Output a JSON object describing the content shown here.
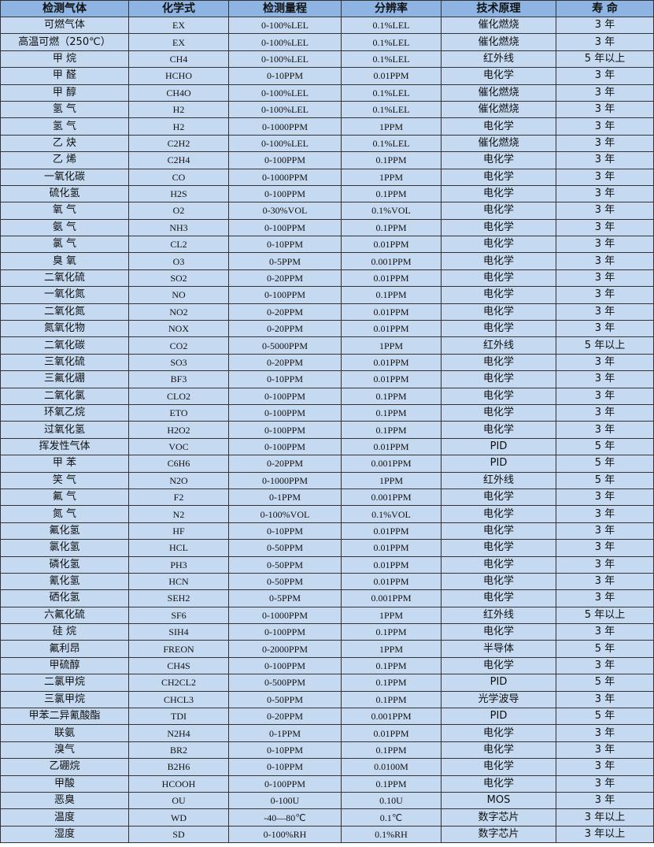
{
  "table": {
    "headers": [
      "检测气体",
      "化学式",
      "检测量程",
      "分辨率",
      "技术原理",
      "寿 命"
    ],
    "rows": [
      [
        "可燃气体",
        "EX",
        "0-100%LEL",
        "0.1%LEL",
        "催化燃烧",
        "3 年"
      ],
      [
        "高温可燃（250℃）",
        "EX",
        "0-100%LEL",
        "0.1%LEL",
        "催化燃烧",
        "3 年"
      ],
      [
        "甲 烷",
        "CH4",
        "0-100%LEL",
        "0.1%LEL",
        "红外线",
        "5 年以上"
      ],
      [
        "甲 醛",
        "HCHO",
        "0-10PPM",
        "0.01PPM",
        "电化学",
        "3 年"
      ],
      [
        "甲 醇",
        "CH4O",
        "0-100%LEL",
        "0.1%LEL",
        "催化燃烧",
        "3 年"
      ],
      [
        "氢 气",
        "H2",
        "0-100%LEL",
        "0.1%LEL",
        "催化燃烧",
        "3 年"
      ],
      [
        "氢 气",
        "H2",
        "0-1000PPM",
        "1PPM",
        "电化学",
        "3 年"
      ],
      [
        "乙 炔",
        "C2H2",
        "0-100%LEL",
        "0.1%LEL",
        "催化燃烧",
        "3 年"
      ],
      [
        "乙 烯",
        "C2H4",
        "0-100PPM",
        "0.1PPM",
        "电化学",
        "3 年"
      ],
      [
        "一氧化碳",
        "CO",
        "0-1000PPM",
        "1PPM",
        "电化学",
        "3 年"
      ],
      [
        "硫化氢",
        "H2S",
        "0-100PPM",
        "0.1PPM",
        "电化学",
        "3 年"
      ],
      [
        "氧 气",
        "O2",
        "0-30%VOL",
        "0.1%VOL",
        "电化学",
        "3 年"
      ],
      [
        "氨 气",
        "NH3",
        "0-100PPM",
        "0.1PPM",
        "电化学",
        "3 年"
      ],
      [
        "氯 气",
        "CL2",
        "0-10PPM",
        "0.01PPM",
        "电化学",
        "3 年"
      ],
      [
        "臭 氧",
        "O3",
        "0-5PPM",
        "0.001PPM",
        "电化学",
        "3 年"
      ],
      [
        "二氧化硫",
        "SO2",
        "0-20PPM",
        "0.01PPM",
        "电化学",
        "3 年"
      ],
      [
        "一氧化氮",
        "NO",
        "0-100PPM",
        "0.1PPM",
        "电化学",
        "3 年"
      ],
      [
        "二氧化氮",
        "NO2",
        "0-20PPM",
        "0.01PPM",
        "电化学",
        "3 年"
      ],
      [
        "氮氧化物",
        "NOX",
        "0-20PPM",
        "0.01PPM",
        "电化学",
        "3 年"
      ],
      [
        "二氧化碳",
        "CO2",
        "0-5000PPM",
        "1PPM",
        "红外线",
        "5 年以上"
      ],
      [
        "三氧化硫",
        "SO3",
        "0-20PPM",
        "0.01PPM",
        "电化学",
        "3 年"
      ],
      [
        "三氟化硼",
        "BF3",
        "0-10PPM",
        "0.01PPM",
        "电化学",
        "3 年"
      ],
      [
        "二氧化氯",
        "CLO2",
        "0-100PPM",
        "0.1PPM",
        "电化学",
        "3 年"
      ],
      [
        "环氧乙烷",
        "ETO",
        "0-100PPM",
        "0.1PPM",
        "电化学",
        "3 年"
      ],
      [
        "过氧化氢",
        "H2O2",
        "0-100PPM",
        "0.1PPM",
        "电化学",
        "3 年"
      ],
      [
        "挥发性气体",
        "VOC",
        "0-100PPM",
        "0.01PPM",
        "PID",
        "5 年"
      ],
      [
        "甲 苯",
        "C6H6",
        "0-20PPM",
        "0.001PPM",
        "PID",
        "5 年"
      ],
      [
        "笑 气",
        "N2O",
        "0-1000PPM",
        "1PPM",
        "红外线",
        "5 年"
      ],
      [
        "氟 气",
        "F2",
        "0-1PPM",
        "0.001PPM",
        "电化学",
        "3 年"
      ],
      [
        "氮 气",
        "N2",
        "0-100%VOL",
        "0.1%VOL",
        "电化学",
        "3 年"
      ],
      [
        "氟化氢",
        "HF",
        "0-10PPM",
        "0.01PPM",
        "电化学",
        "3 年"
      ],
      [
        "氯化氢",
        "HCL",
        "0-50PPM",
        "0.01PPM",
        "电化学",
        "3 年"
      ],
      [
        "磷化氢",
        "PH3",
        "0-50PPM",
        "0.01PPM",
        "电化学",
        "3 年"
      ],
      [
        "氰化氢",
        "HCN",
        "0-50PPM",
        "0.01PPM",
        "电化学",
        "3 年"
      ],
      [
        "硒化氢",
        "SEH2",
        "0-5PPM",
        "0.001PPM",
        "电化学",
        "3 年"
      ],
      [
        "六氟化硫",
        "SF6",
        "0-1000PPM",
        "1PPM",
        "红外线",
        "5 年以上"
      ],
      [
        "硅 烷",
        "SIH4",
        "0-100PPM",
        "0.1PPM",
        "电化学",
        "3 年"
      ],
      [
        "氟利昂",
        "FREON",
        "0-2000PPM",
        "1PPM",
        "半导体",
        "5 年"
      ],
      [
        "甲硫醇",
        "CH4S",
        "0-100PPM",
        "0.1PPM",
        "电化学",
        "3 年"
      ],
      [
        "二氯甲烷",
        "CH2CL2",
        "0-500PPM",
        "0.1PPM",
        "PID",
        "5 年"
      ],
      [
        "三氯甲烷",
        "CHCL3",
        "0-50PPM",
        "0.1PPM",
        "光学波导",
        "3 年"
      ],
      [
        "甲苯二异氰酸酯",
        "TDI",
        "0-20PPM",
        "0.001PPM",
        "PID",
        "5 年"
      ],
      [
        "联氨",
        "N2H4",
        "0-1PPM",
        "0.01PPM",
        "电化学",
        "3 年"
      ],
      [
        "溴气",
        "BR2",
        "0-10PPM",
        "0.1PPM",
        "电化学",
        "3 年"
      ],
      [
        "乙硼烷",
        "B2H6",
        "0-10PPM",
        "0.0100M",
        "电化学",
        "3 年"
      ],
      [
        "甲酸",
        "HCOOH",
        "0-100PPM",
        "0.1PPM",
        "电化学",
        "3 年"
      ],
      [
        "恶臭",
        "OU",
        "0-100U",
        "0.10U",
        "MOS",
        "3 年"
      ],
      [
        "温度",
        "WD",
        "-40—80℃",
        "0.1℃",
        "数字芯片",
        "3 年以上"
      ],
      [
        "湿度",
        "SD",
        "0-100%RH",
        "0.1%RH",
        "数字芯片",
        "3 年以上"
      ]
    ]
  },
  "colors": {
    "header_bg": "#8db4e2",
    "row_bg": "#c5d9f1",
    "border": "#333333"
  }
}
